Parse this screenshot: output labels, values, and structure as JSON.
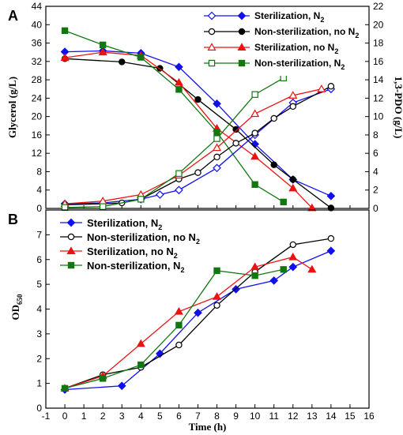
{
  "chart_data": [
    {
      "panel": "A",
      "type": "line",
      "ylabel": "Glycerol (g/L)",
      "y2label": "1,3-PDO (g/L)",
      "ylim": [
        0,
        44
      ],
      "y2lim": [
        0,
        22
      ],
      "xlim": [
        -1,
        16
      ],
      "yticks": [
        0,
        4,
        8,
        12,
        16,
        20,
        24,
        28,
        32,
        36,
        40,
        44
      ],
      "y2ticks": [
        0,
        2,
        4,
        6,
        8,
        10,
        12,
        14,
        16,
        18,
        20,
        22
      ],
      "colors": {
        "sterN2": "#1010ee",
        "nonsterNoN2": "#000000",
        "sterNoN2": "#ee1111",
        "nonsterN2": "#117711"
      },
      "legend": [
        {
          "label": "Sterilization, N",
          "sub": "2",
          "color": "#1010ee",
          "open": "diamond",
          "filled": "diamond"
        },
        {
          "label": "Non-sterilization, no N",
          "sub": "2",
          "color": "#000000",
          "open": "circle",
          "filled": "circle"
        },
        {
          "label": "Sterilization, no N",
          "sub": "2",
          "color": "#ee1111",
          "open": "triangle",
          "filled": "triangle"
        },
        {
          "label": "Non-sterilization,  N",
          "sub": "2",
          "color": "#117711",
          "open": "square",
          "filled": "square"
        }
      ],
      "glycerol": [
        {
          "key": "sterN2",
          "color": "#1010ee",
          "marker": "diamond",
          "x": [
            0,
            2,
            4,
            6,
            8,
            10,
            12,
            14
          ],
          "y": [
            34.1,
            34.3,
            33.8,
            30.8,
            22.8,
            14.0,
            6.3,
            2.7
          ]
        },
        {
          "key": "nonsterNoN2",
          "color": "#000000",
          "marker": "circle",
          "x": [
            0,
            3,
            5,
            7,
            9,
            11,
            12,
            14
          ],
          "y": [
            32.6,
            31.9,
            30.5,
            23.7,
            17.2,
            9.5,
            6.3,
            0.1
          ]
        },
        {
          "key": "sterNoN2",
          "color": "#ee1111",
          "marker": "triangle",
          "x": [
            0,
            2,
            4,
            6,
            8,
            10,
            12,
            13
          ],
          "y": [
            32.8,
            34.0,
            33.3,
            27.4,
            17.4,
            11.3,
            4.4,
            0.1
          ]
        },
        {
          "key": "nonsterN2",
          "color": "#117711",
          "marker": "square",
          "x": [
            0,
            2,
            4,
            6,
            8,
            10,
            11.5
          ],
          "y": [
            38.7,
            35.6,
            32.9,
            25.9,
            16.6,
            5.2,
            1.4
          ]
        }
      ],
      "pdo": [
        {
          "key": "sterN2",
          "color": "#1010ee",
          "marker": "diamond",
          "x": [
            0,
            2,
            4,
            5,
            6,
            8,
            10,
            12,
            14
          ],
          "y": [
            0.5,
            0.6,
            1.0,
            1.5,
            2.0,
            4.4,
            8.0,
            11.5,
            13.0
          ]
        },
        {
          "key": "nonsterNoN2",
          "color": "#000000",
          "marker": "circle",
          "x": [
            0,
            2,
            3,
            4,
            6,
            7,
            8,
            9,
            10,
            11,
            12,
            14
          ],
          "y": [
            0.4,
            0.5,
            0.6,
            1.0,
            3.2,
            3.9,
            5.6,
            7.1,
            8.2,
            9.8,
            11.1,
            13.3
          ]
        },
        {
          "key": "sterNoN2",
          "color": "#ee1111",
          "marker": "triangle",
          "x": [
            0,
            2,
            4,
            6,
            8,
            10,
            12,
            13.5
          ],
          "y": [
            0.5,
            0.8,
            1.5,
            3.6,
            6.6,
            10.3,
            12.3,
            13.0
          ]
        },
        {
          "key": "nonsterN2",
          "color": "#117711",
          "marker": "square",
          "x": [
            0,
            2,
            4,
            6,
            8,
            10,
            11.5
          ],
          "y": [
            0.1,
            0.2,
            1.0,
            3.8,
            7.6,
            12.4,
            14.2
          ]
        }
      ]
    },
    {
      "panel": "B",
      "type": "line",
      "xlabel": "Time (h)",
      "ylabel": "OD",
      "ylabel_sub": "650",
      "ylim": [
        0,
        8
      ],
      "xlim": [
        -1,
        16
      ],
      "yticks": [
        0,
        1,
        2,
        3,
        4,
        5,
        6,
        7
      ],
      "xticks": [
        -1,
        0,
        1,
        2,
        3,
        4,
        5,
        6,
        7,
        8,
        9,
        10,
        11,
        12,
        13,
        14,
        15,
        16
      ],
      "legend": [
        {
          "label": "Sterilization, N",
          "sub": "2",
          "color": "#1010ee",
          "marker": "diamond"
        },
        {
          "label": "Non-sterilization, no N",
          "sub": "2",
          "color": "#000000",
          "marker": "circle"
        },
        {
          "label": "Sterilization, no N",
          "sub": "2",
          "color": "#ee1111",
          "marker": "triangle"
        },
        {
          "label": "Non-sterilization, N",
          "sub": "2",
          "color": "#117711",
          "marker": "square"
        }
      ],
      "series": [
        {
          "key": "sterN2",
          "color": "#1010ee",
          "marker": "diamond",
          "x": [
            0,
            3,
            5,
            7,
            9,
            11,
            12,
            14
          ],
          "y": [
            0.75,
            0.9,
            2.2,
            3.85,
            4.8,
            5.15,
            5.7,
            6.35
          ]
        },
        {
          "key": "nonsterNoN2",
          "color": "#000000",
          "marker": "circle",
          "x": [
            0,
            2,
            4,
            6,
            8,
            10,
            12,
            14
          ],
          "y": [
            0.8,
            1.35,
            1.65,
            2.55,
            4.15,
            5.5,
            6.6,
            6.85
          ]
        },
        {
          "key": "sterNoN2",
          "color": "#ee1111",
          "marker": "triangle",
          "x": [
            0,
            2,
            4,
            6,
            8,
            10,
            12,
            13
          ],
          "y": [
            0.8,
            1.3,
            2.6,
            3.9,
            4.5,
            5.7,
            6.1,
            5.6
          ]
        },
        {
          "key": "nonsterN2",
          "color": "#117711",
          "marker": "square",
          "x": [
            0,
            2,
            4,
            6,
            8,
            10,
            11.5
          ],
          "y": [
            0.8,
            1.2,
            1.75,
            3.35,
            5.55,
            5.35,
            5.6
          ]
        }
      ]
    }
  ]
}
